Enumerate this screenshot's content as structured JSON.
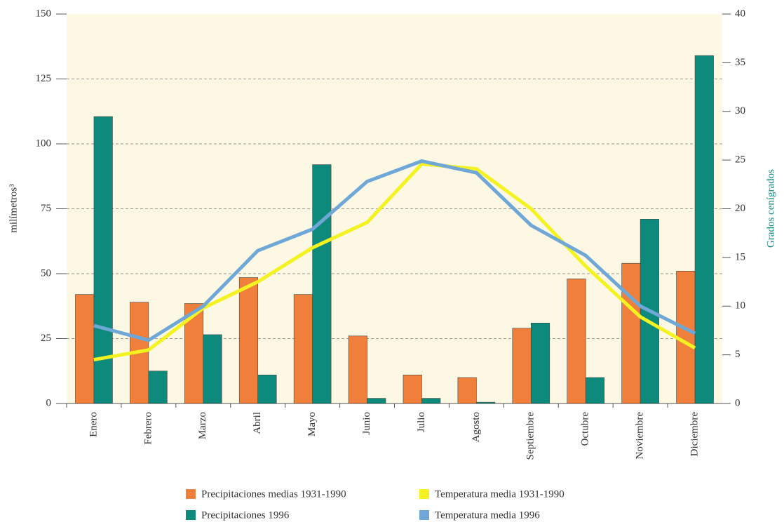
{
  "chart_data": {
    "type": "bar_line",
    "ylabel": "milímetros³",
    "y2label": "Grados cenígrados",
    "categories": [
      "Enero",
      "Febrero",
      "Marzo",
      "Abril",
      "Mayo",
      "Junio",
      "Julio",
      "Agosto",
      "Septiembre",
      "Octubre",
      "Noviembre",
      "Diciembre"
    ],
    "series": [
      {
        "name": "Precipitaciones medias 1931-1990",
        "color": "#f07f3c",
        "kind": "bar",
        "values": [
          42,
          39,
          38.5,
          48.5,
          42,
          26,
          11,
          10,
          29,
          48,
          54,
          51
        ]
      },
      {
        "name": "Precipitaciones 1996",
        "color": "#0e8a7c",
        "kind": "bar",
        "values": [
          110.5,
          12.5,
          26.5,
          11,
          92,
          2,
          2,
          0.5,
          31,
          10,
          71,
          134
        ]
      },
      {
        "name": "Temperatura media 1931-1990",
        "color": "#f5f221",
        "kind": "line",
        "axis": "y2",
        "values": [
          4.5,
          5.5,
          9.8,
          12.5,
          16,
          18.6,
          24.6,
          24.1,
          20,
          14.1,
          8.9,
          5.7
        ]
      },
      {
        "name": "Temperatura media 1996",
        "color": "#6fa8d6",
        "kind": "line",
        "axis": "y2",
        "values": [
          8,
          6.5,
          10,
          15.7,
          17.9,
          22.8,
          24.9,
          23.7,
          18.3,
          15.2,
          10,
          7.2
        ]
      }
    ],
    "ylim": [
      0,
      150
    ],
    "yticks": [
      0,
      25,
      50,
      75,
      100,
      125,
      150
    ],
    "y2lim": [
      0,
      40
    ],
    "y2ticks": [
      0,
      5,
      10,
      15,
      20,
      25,
      30,
      35,
      40
    ],
    "grid": true
  }
}
